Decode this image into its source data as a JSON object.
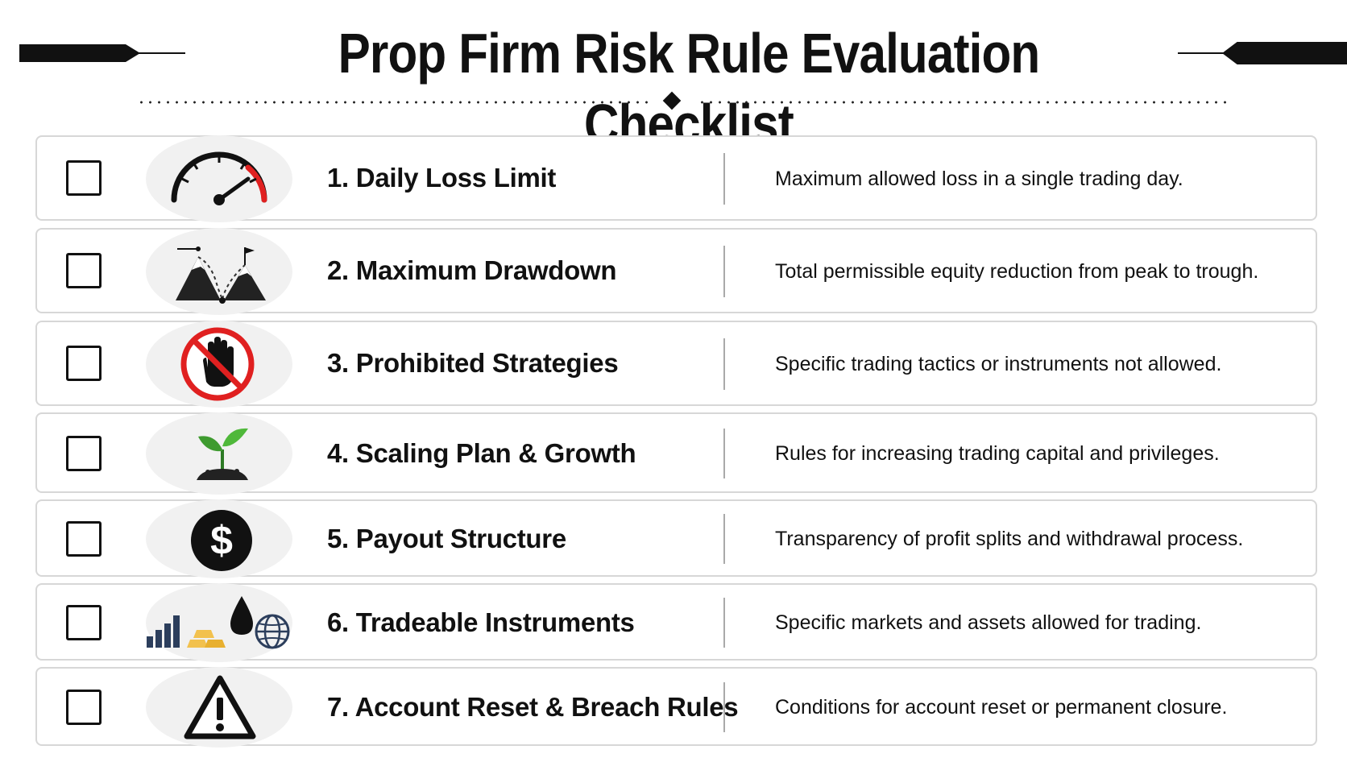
{
  "header": {
    "title": "Prop Firm Risk Rule Evaluation Checklist"
  },
  "items": [
    {
      "title": "1. Daily Loss Limit",
      "description": "Maximum allowed loss in a single trading day.",
      "icon": "speedometer-icon",
      "checked": false
    },
    {
      "title": "2. Maximum Drawdown",
      "description": "Total permissible equity reduction from peak to trough.",
      "icon": "mountain-peaks-icon",
      "checked": false
    },
    {
      "title": "3. Prohibited Strategies",
      "description": "Specific trading tactics or instruments not allowed.",
      "icon": "prohibited-hand-icon",
      "checked": false
    },
    {
      "title": "4. Scaling Plan & Growth",
      "description": "Rules for increasing trading capital and privileges.",
      "icon": "sprout-icon",
      "checked": false
    },
    {
      "title": "5. Payout Structure",
      "description": "Transparency of profit splits and withdrawal process.",
      "icon": "dollar-coin-icon",
      "checked": false
    },
    {
      "title": "6. Tradeable Instruments",
      "description": "Specific markets and assets allowed for trading.",
      "icon": "instruments-icon",
      "checked": false
    },
    {
      "title": "7. Account Reset & Breach Rules",
      "description": "Conditions for account reset or permanent closure.",
      "icon": "warning-icon",
      "checked": false
    }
  ],
  "colors": {
    "border": "#d7d7d7",
    "icon_bg": "#f1f1f1",
    "danger_red": "#e02020",
    "leaf_green": "#3e9b2f",
    "gold": "#f2c14e",
    "chart_navy": "#2c3e5c"
  }
}
